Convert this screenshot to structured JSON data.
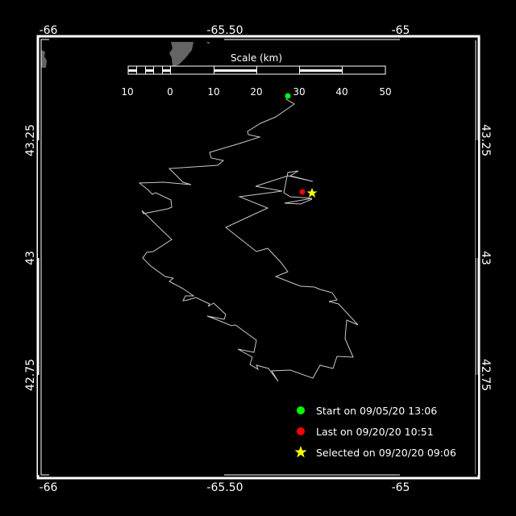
{
  "map": {
    "lon_labels": [
      "-66",
      "-65.50",
      "-65"
    ],
    "lat_labels": [
      "43.25",
      "43",
      "42.75"
    ],
    "scale": {
      "title": "Scale (km)",
      "ticks": [
        "10",
        "0",
        "10",
        "20",
        "30",
        "40",
        "50"
      ]
    },
    "legend": [
      {
        "symbol": "green-dot",
        "color": "#00ff00",
        "label": "Start on 09/05/20 13:06"
      },
      {
        "symbol": "red-dot",
        "color": "#ff0000",
        "label": "Last on 09/20/20 10:51"
      },
      {
        "symbol": "yellow-star",
        "color": "#ffff00",
        "label": "Selected on 09/20/20 09:06"
      }
    ],
    "colors": {
      "background": "#000000",
      "track": "#c8c8c8",
      "land": "#646464",
      "frame": "#ffffff"
    }
  }
}
